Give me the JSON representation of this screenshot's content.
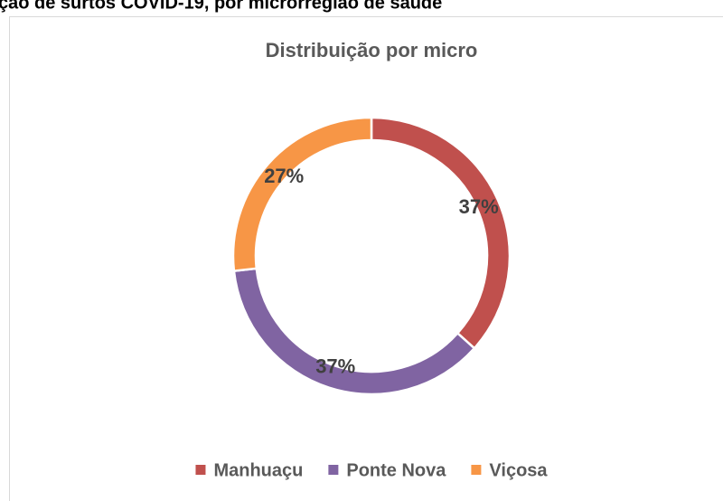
{
  "heading": "ção de surtos COVID-19, por microrregião de saúde",
  "chart_data": {
    "type": "donut",
    "title": "Distribuição por micro",
    "categories": [
      "Manhuaçu",
      "Ponte Nova",
      "Viçosa"
    ],
    "values": [
      37,
      37,
      27
    ],
    "value_labels": [
      "37%",
      "37%",
      "27%"
    ],
    "colors": [
      "#c0504d",
      "#8064a2",
      "#f79646"
    ],
    "legend": "bottom"
  }
}
